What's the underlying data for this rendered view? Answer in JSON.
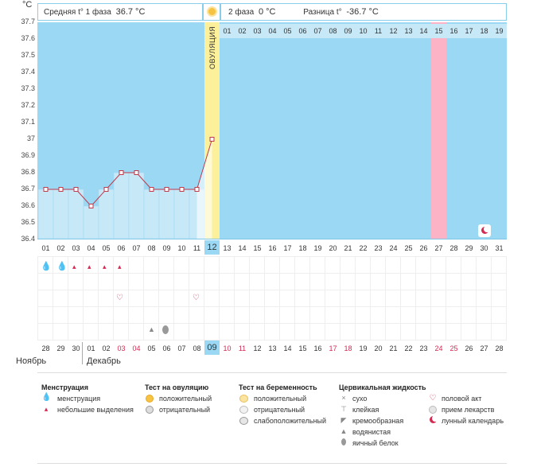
{
  "unit_label": "°C",
  "header": {
    "phase1_label": "Средняя t° 1 фаза",
    "phase1_value": "36.7 °C",
    "phase2_label": "2 фаза",
    "phase2_value": "0 °C",
    "diff_label": "Разница t°",
    "diff_value": "-36.7 °C"
  },
  "ovulation_label": "ОВУЛЯЦИЯ",
  "y_ticks": [
    "37.7",
    "37.6",
    "37.5",
    "37.4",
    "37.3",
    "37.2",
    "37.1",
    "37",
    "36.9",
    "36.8",
    "36.7",
    "36.6",
    "36.5",
    "36.4"
  ],
  "phase2_days": [
    "01",
    "02",
    "03",
    "04",
    "05",
    "06",
    "07",
    "08",
    "09",
    "10",
    "11",
    "12",
    "13",
    "14",
    "15",
    "16",
    "17",
    "18",
    "19"
  ],
  "highlight_phase2_day": "15",
  "cycle_days": [
    "01",
    "02",
    "03",
    "04",
    "05",
    "06",
    "07",
    "08",
    "09",
    "10",
    "11",
    "12",
    "13",
    "14",
    "15",
    "16",
    "17",
    "18",
    "19",
    "20",
    "21",
    "22",
    "23",
    "24",
    "25",
    "26",
    "27",
    "28",
    "29",
    "30",
    "31"
  ],
  "current_cycle_day": "12",
  "calendar_dates": [
    {
      "d": "28",
      "red": false
    },
    {
      "d": "29",
      "red": false
    },
    {
      "d": "30",
      "red": false
    },
    {
      "d": "01",
      "red": false
    },
    {
      "d": "02",
      "red": false
    },
    {
      "d": "03",
      "red": true
    },
    {
      "d": "04",
      "red": true
    },
    {
      "d": "05",
      "red": false
    },
    {
      "d": "06",
      "red": false
    },
    {
      "d": "07",
      "red": false
    },
    {
      "d": "08",
      "red": false
    },
    {
      "d": "09",
      "red": false
    },
    {
      "d": "10",
      "red": true
    },
    {
      "d": "11",
      "red": true
    },
    {
      "d": "12",
      "red": false
    },
    {
      "d": "13",
      "red": false
    },
    {
      "d": "14",
      "red": false
    },
    {
      "d": "15",
      "red": false
    },
    {
      "d": "16",
      "red": false
    },
    {
      "d": "17",
      "red": true
    },
    {
      "d": "18",
      "red": true
    },
    {
      "d": "19",
      "red": false
    },
    {
      "d": "20",
      "red": false
    },
    {
      "d": "21",
      "red": false
    },
    {
      "d": "22",
      "red": false
    },
    {
      "d": "23",
      "red": false
    },
    {
      "d": "24",
      "red": true
    },
    {
      "d": "25",
      "red": true
    },
    {
      "d": "26",
      "red": false
    },
    {
      "d": "27",
      "red": false
    },
    {
      "d": "28",
      "red": false
    }
  ],
  "month_prev": "Ноябрь",
  "month_next": "Декабрь",
  "chart_data": {
    "type": "line",
    "x": [
      "01",
      "02",
      "03",
      "04",
      "05",
      "06",
      "07",
      "08",
      "09",
      "10",
      "11",
      "12"
    ],
    "values": [
      36.7,
      36.7,
      36.7,
      36.6,
      36.7,
      36.8,
      36.8,
      36.7,
      36.7,
      36.7,
      36.7,
      37.0
    ],
    "ylim": [
      36.4,
      37.7
    ],
    "color": "#c0384a",
    "fill": "#c7e8f7"
  },
  "colors": {
    "bg_blue": "#9bd8f3",
    "ovulation": "#fcf09b",
    "highlight": "#fdb3c6",
    "accent_red": "#d42a52"
  },
  "legend": {
    "menstruation": {
      "title": "Менструация",
      "items": [
        "менструация",
        "небольшие выделения"
      ]
    },
    "ovulation_test": {
      "title": "Тест на овуляцию",
      "items": [
        "положительный",
        "отрицательный"
      ]
    },
    "pregnancy_test": {
      "title": "Тест на беременность",
      "items": [
        "положительный",
        "отрицательный",
        "слабоположительный"
      ]
    },
    "cervical": {
      "title": "Цервикальная жидкость",
      "items": [
        "сухо",
        "клейкая",
        "кремообразная",
        "водянистая",
        "яичный белок"
      ]
    },
    "other": {
      "items": [
        "половой акт",
        "прием лекарств",
        "лунный календарь"
      ]
    }
  }
}
